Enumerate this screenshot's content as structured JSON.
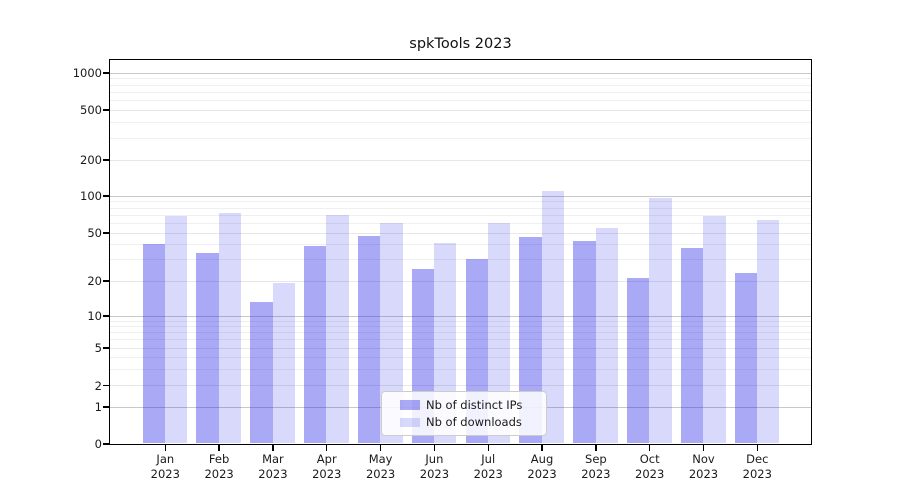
{
  "title": "spkTools 2023",
  "chart_data": {
    "type": "bar",
    "title": "spkTools 2023",
    "categories": [
      "Jan",
      "Feb",
      "Mar",
      "Apr",
      "May",
      "Jun",
      "Jul",
      "Aug",
      "Sep",
      "Oct",
      "Nov",
      "Dec"
    ],
    "year_label": "2023",
    "series": [
      {
        "name": "Nb of distinct IPs",
        "color": "rgba(30,30,230,0.38)",
        "values": [
          40,
          34,
          13,
          39,
          47,
          25,
          30,
          46,
          43,
          21,
          37,
          23
        ]
      },
      {
        "name": "Nb of downloads",
        "color": "rgba(30,30,230,0.17)",
        "values": [
          68,
          72,
          19,
          70,
          60,
          41,
          60,
          110,
          55,
          95,
          68,
          63
        ]
      }
    ],
    "xlabel": "",
    "ylabel": "",
    "yscale": "symlog",
    "ylim": [
      0,
      1000
    ],
    "y_ticks": [
      0,
      1,
      2,
      5,
      10,
      20,
      50,
      100,
      200,
      500,
      1000
    ],
    "y_minor_gridlines": [
      3,
      4,
      6,
      7,
      8,
      9,
      30,
      40,
      60,
      70,
      80,
      90,
      300,
      400,
      600,
      700,
      800,
      900
    ],
    "grid": true,
    "legend_position": "lower center"
  },
  "colors": {
    "bar_dark": "rgba(30,30,230,0.38)",
    "bar_light": "rgba(30,30,230,0.17)",
    "major_grid": "#c8c8c8",
    "labeled_grid": "#e7e7e7",
    "minor_grid": "#efefef",
    "spine": "#000000",
    "text": "#1a1a1a",
    "background": "#ffffff"
  }
}
